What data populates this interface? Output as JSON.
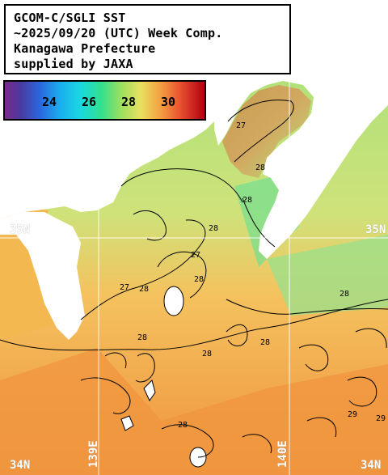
{
  "title": {
    "line1": "GCOM-C/SGLI SST",
    "line2": "~2025/09/20 (UTC) Week Comp.",
    "line3": "Kanagawa Prefecture",
    "line4": "supplied by JAXA"
  },
  "colorbar": {
    "ticks": [
      "24",
      "26",
      "28",
      "30"
    ]
  },
  "axes": {
    "lat_top": "35N",
    "lat_top_right": "35N",
    "lat_bottom_left": "34N",
    "lat_bottom_right": "34N",
    "lon_left": "139E",
    "lon_right": "140E"
  },
  "contours": [
    "27",
    "28",
    "28",
    "28",
    "27",
    "28",
    "28",
    "28",
    "28",
    "28",
    "28",
    "29",
    "29",
    "27",
    "28"
  ],
  "colors": {
    "land": "#ffffff",
    "sst_warm": "#f08a3a",
    "sst_mid": "#f5c25a",
    "sst_cool": "#a8e070",
    "sst_cold": "#6ee08a",
    "contour": "#000000",
    "gridline": "#ffffff"
  }
}
